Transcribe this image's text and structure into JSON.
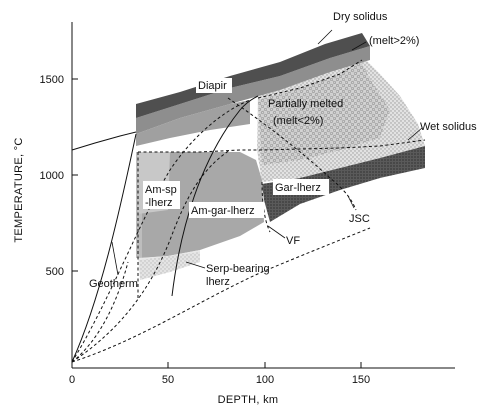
{
  "chart_data": {
    "type": "phase-diagram",
    "xlabel": "DEPTH,  km",
    "ylabel": "TEMPERATURE, °C",
    "xlim": [
      0,
      200
    ],
    "ylim": [
      0,
      1800
    ],
    "x_ticks": [
      "0",
      "50",
      "100",
      "150"
    ],
    "y_ticks": [
      "500",
      "1000",
      "1500"
    ],
    "curves": [
      {
        "label": "Dry solidus",
        "points": [
          [
            35,
            1320
          ],
          [
            80,
            1440
          ],
          [
            140,
            1690
          ]
        ]
      },
      {
        "label": "(melt>2%)",
        "points": [
          [
            35,
            1240
          ],
          [
            80,
            1400
          ],
          [
            155,
            1600
          ]
        ]
      },
      {
        "label": "Wet solidus",
        "points": [
          [
            35,
            1140
          ],
          [
            90,
            1100
          ],
          [
            180,
            1050
          ]
        ]
      },
      {
        "label": "Geotherm",
        "points": [
          [
            0,
            1130
          ],
          [
            25,
            1180
          ],
          [
            40,
            1250
          ],
          [
            60,
            1340
          ],
          [
            80,
            1420
          ]
        ]
      }
    ],
    "regions": [
      {
        "label": "Diapir"
      },
      {
        "label": "Partially melted\n(melt<2%)"
      },
      {
        "label": "Am-sp\n-lherz"
      },
      {
        "label": "Am-gar-lherz"
      },
      {
        "label": "Gar-lherz"
      },
      {
        "label": "Serp-bearing\nlherz"
      },
      {
        "label": "VF"
      },
      {
        "label": "JSC"
      }
    ]
  },
  "labels": {
    "dry_solidus": "Dry solidus",
    "melt_gt": "(melt>2%)",
    "wet_solidus": "Wet solidus",
    "diapir": "Diapir",
    "partially_melted": "Partially melted",
    "melt_lt": "(melt<2%)",
    "am_sp_1": "Am-sp",
    "am_sp_2": "-lherz",
    "am_gar": "Am-gar-lherz",
    "gar": "Gar-lherz",
    "jsc": "JSC",
    "vf": "VF",
    "serp_1": "Serp-bearing",
    "serp_2": "lherz",
    "geotherm": "Geotherm"
  },
  "colors": {
    "diapir_band": "#555555",
    "melt_band": "#8a8a8a",
    "partial_zone": "#d9d9d9",
    "am_gar_zone": "#a8a8a8",
    "am_sp_zone": "#cccccc",
    "serp_zone": "#e6e6e6",
    "gar_zone": "#3c3c3c"
  }
}
